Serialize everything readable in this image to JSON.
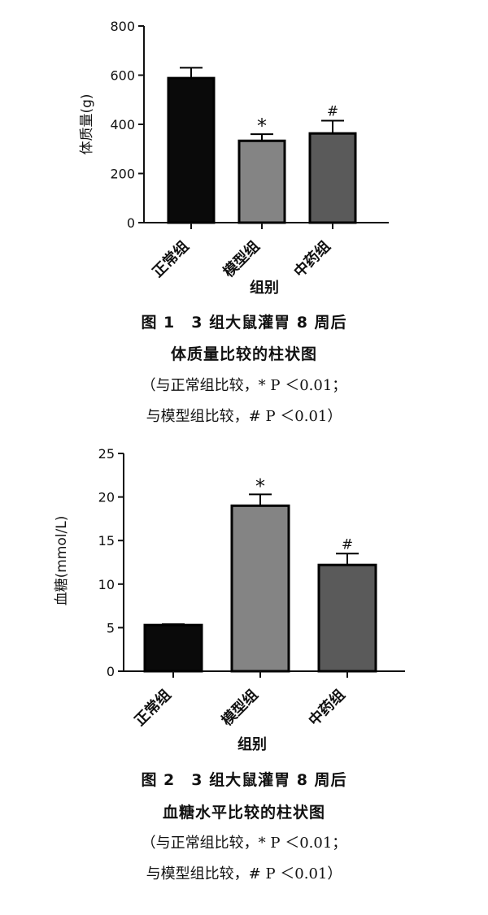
{
  "figures": [
    {
      "chart_data": {
        "type": "bar",
        "categories": [
          "正常组",
          "模型组",
          "中药组"
        ],
        "values": [
          588,
          333,
          363
        ],
        "errors": [
          42,
          27,
          52
        ],
        "markers": [
          "",
          "*",
          "#"
        ],
        "colors": [
          "#0a0a0a",
          "#848484",
          "#5a5a5a"
        ],
        "xlabel": "组别",
        "ylabel": "体质量(g)",
        "ylim": [
          0,
          800
        ],
        "yticks": [
          "0",
          "200",
          "400",
          "600",
          "800"
        ],
        "grid": false
      },
      "caption": {
        "line1": "图 1　3 组大鼠灌胃 8 周后",
        "line2": "体质量比较的柱状图",
        "line3": "（与正常组比较，* P ＜0.01；",
        "line4": "与模型组比较，# P ＜0.01）"
      }
    },
    {
      "chart_data": {
        "type": "bar",
        "categories": [
          "正常组",
          "模型组",
          "中药组"
        ],
        "values": [
          5.3,
          19.0,
          12.2
        ],
        "errors": [
          0.1,
          1.3,
          1.3
        ],
        "markers": [
          "",
          "*",
          "#"
        ],
        "colors": [
          "#0a0a0a",
          "#848484",
          "#5a5a5a"
        ],
        "xlabel": "组别",
        "ylabel": "血糖(mmol/L)",
        "ylim": [
          0,
          25
        ],
        "yticks": [
          "0",
          "5",
          "10",
          "15",
          "20",
          "25"
        ],
        "grid": false
      },
      "caption": {
        "line1": "图 2　3 组大鼠灌胃 8 周后",
        "line2": "血糖水平比较的柱状图",
        "line3": "（与正常组比较，* P ＜0.01；",
        "line4": "与模型组比较，# P ＜0.01）"
      }
    }
  ]
}
